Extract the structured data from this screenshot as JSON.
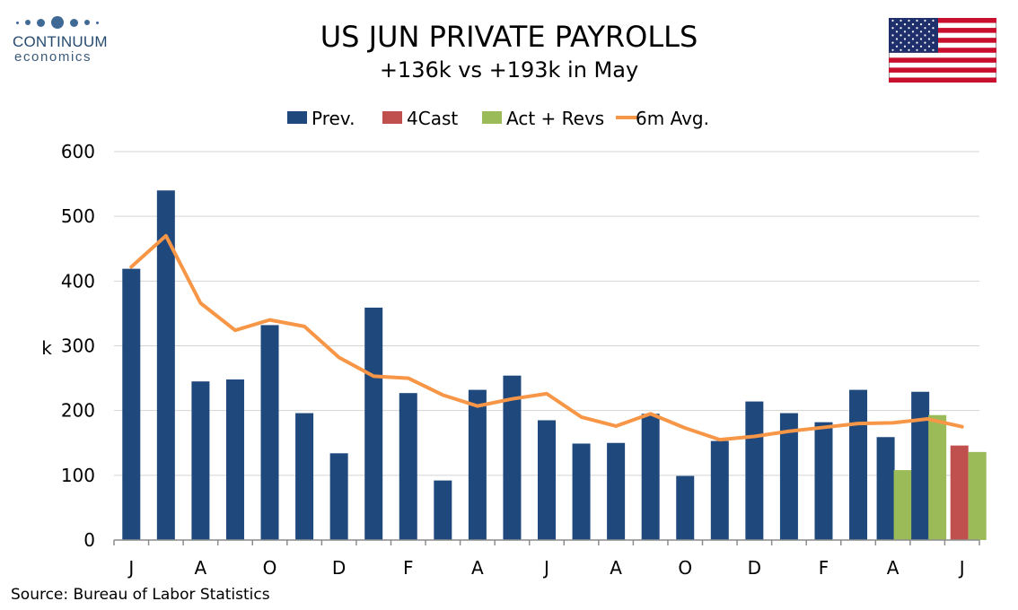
{
  "header": {
    "title": "US JUN PRIVATE PAYROLLS",
    "subtitle": "+136k vs +193k in May",
    "logo_name": "CONTINUUM",
    "logo_sub": "economics"
  },
  "footer": {
    "source": "Source: Bureau of Labor Statistics"
  },
  "colors": {
    "prev": "#1f497d",
    "fourcast": "#c0504d",
    "act": "#9bbb59",
    "avg": "#f79646"
  },
  "chart_data": {
    "type": "bar",
    "title": "US JUN PRIVATE PAYROLLS",
    "subtitle": "+136k vs +193k in May",
    "ylabel": "k",
    "ylim": [
      0,
      600
    ],
    "yticks": [
      0,
      100,
      200,
      300,
      400,
      500,
      600
    ],
    "grid": true,
    "legend_position": "top",
    "categories": [
      "J",
      "",
      "A",
      "",
      "O",
      "",
      "D",
      "",
      "F",
      "",
      "A",
      "",
      "J",
      "",
      "A",
      "",
      "O",
      "",
      "D",
      "",
      "F",
      "",
      "A",
      "",
      "J"
    ],
    "series": [
      {
        "name": "Prev.",
        "kind": "bar",
        "values": [
          419,
          540,
          245,
          248,
          332,
          196,
          134,
          359,
          227,
          92,
          232,
          254,
          185,
          149,
          150,
          195,
          99,
          153,
          214,
          196,
          182,
          232,
          159,
          229,
          null
        ]
      },
      {
        "name": "4Cast",
        "kind": "bar",
        "values": [
          null,
          null,
          null,
          null,
          null,
          null,
          null,
          null,
          null,
          null,
          null,
          null,
          null,
          null,
          null,
          null,
          null,
          null,
          null,
          null,
          null,
          null,
          null,
          null,
          146
        ]
      },
      {
        "name": "Act + Revs",
        "kind": "bar",
        "values": [
          null,
          null,
          null,
          null,
          null,
          null,
          null,
          null,
          null,
          null,
          null,
          null,
          null,
          null,
          null,
          null,
          null,
          null,
          null,
          null,
          null,
          null,
          108,
          193,
          136
        ]
      },
      {
        "name": "6m Avg.",
        "kind": "line",
        "values": [
          422,
          470,
          366,
          324,
          340,
          330,
          282,
          253,
          250,
          224,
          207,
          218,
          226,
          190,
          176,
          195,
          173,
          155,
          160,
          168,
          174,
          180,
          181,
          187,
          175
        ]
      }
    ]
  }
}
